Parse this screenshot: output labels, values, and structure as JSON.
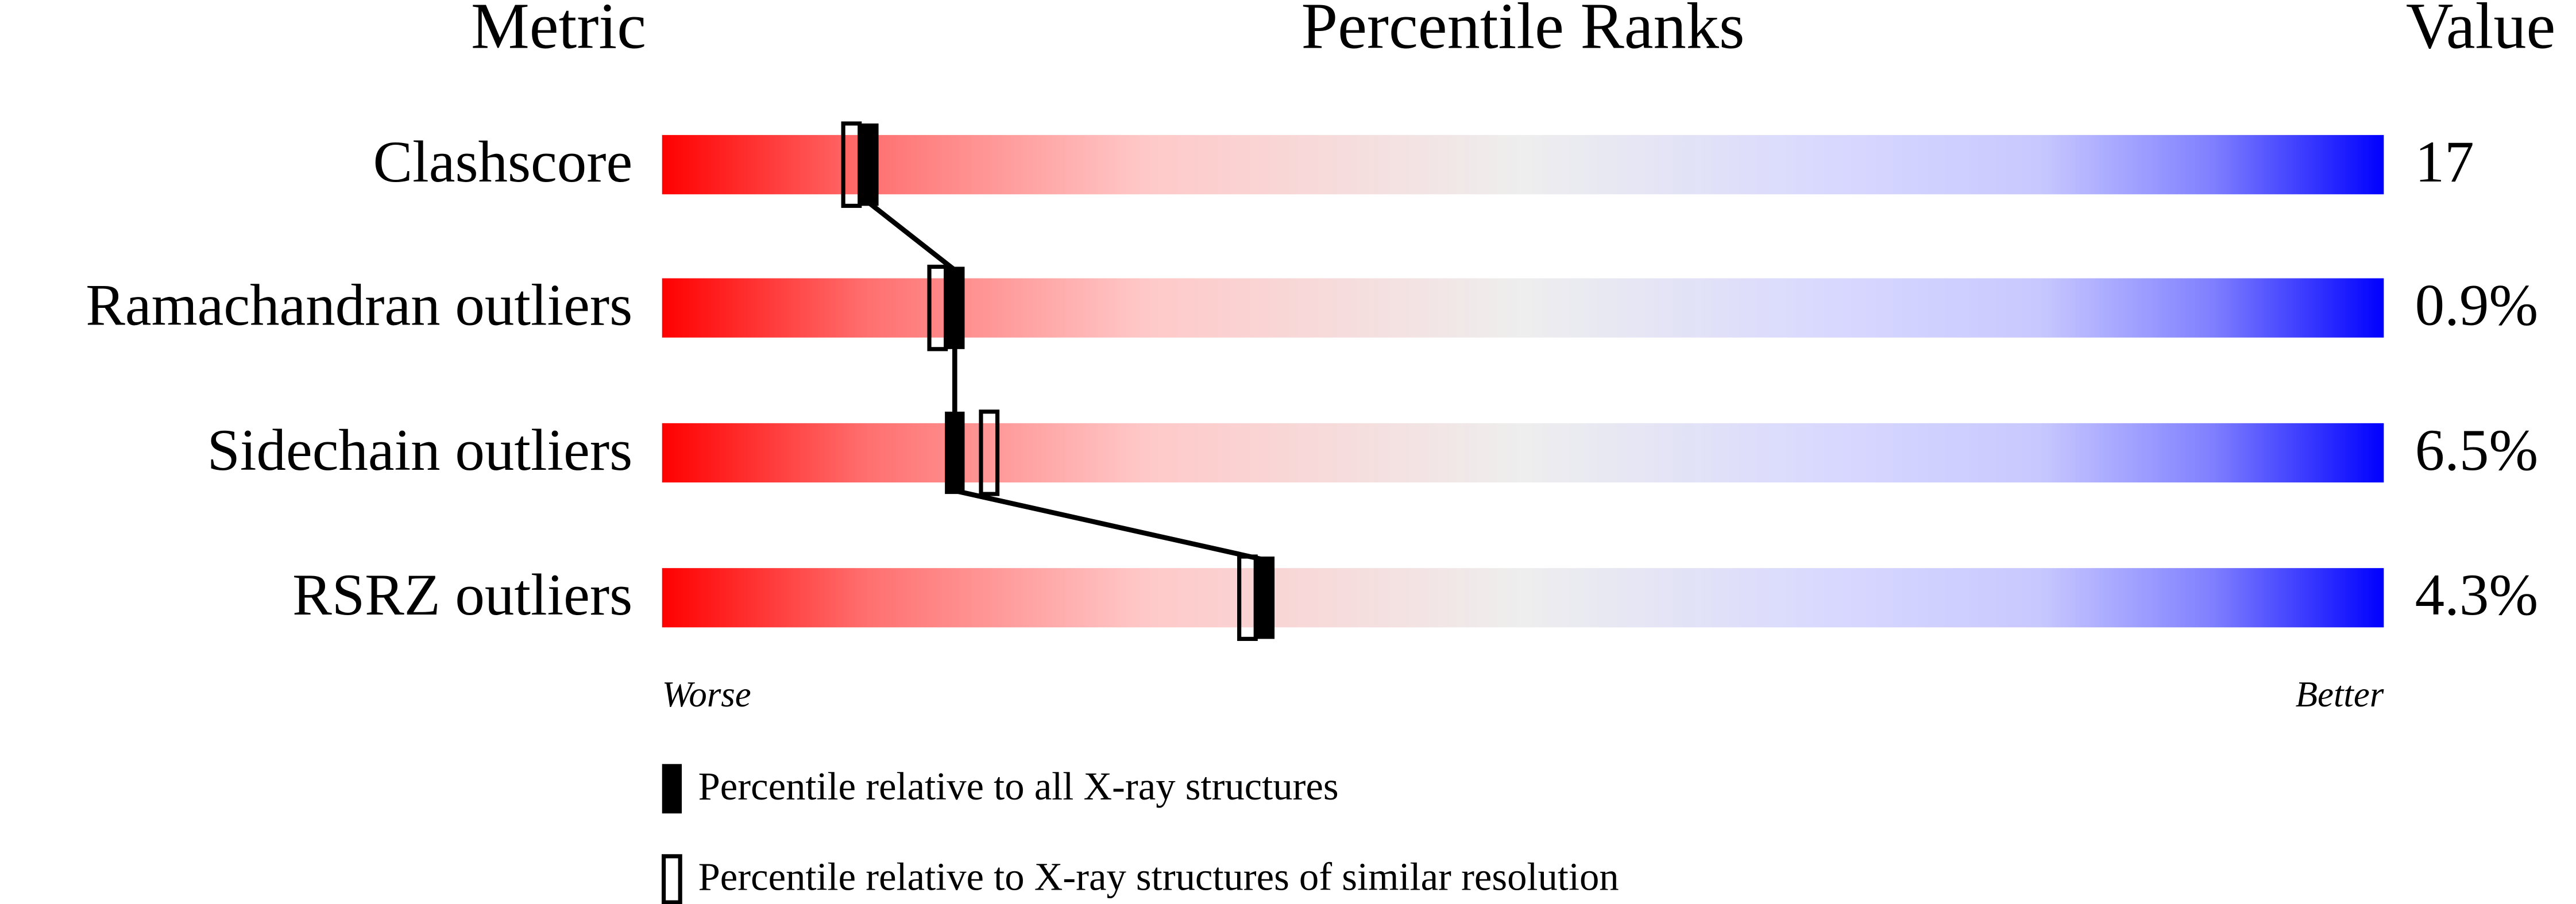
{
  "chart_data": {
    "type": "percentile",
    "header_metric": "Metric",
    "title": "Percentile Ranks",
    "header_value": "Value",
    "categories": [
      "Clashscore",
      "Ramachandran outliers",
      "Sidechain outliers",
      "RSRZ outliers"
    ],
    "value_column": [
      "17",
      "0.9%",
      "6.5%",
      "4.3%"
    ],
    "xlim": [
      0,
      100
    ],
    "low_label": "Worse",
    "high_label": "Better",
    "series": [
      {
        "name": "Percentile relative to all X-ray structures",
        "color": "#000000",
        "style": "filled",
        "values": [
          12,
          17,
          17,
          35
        ]
      },
      {
        "name": "Percentile relative to X-ray structures of similar resolution",
        "color": "#000000",
        "style": "open",
        "values": [
          11,
          16,
          19,
          34
        ]
      }
    ]
  }
}
